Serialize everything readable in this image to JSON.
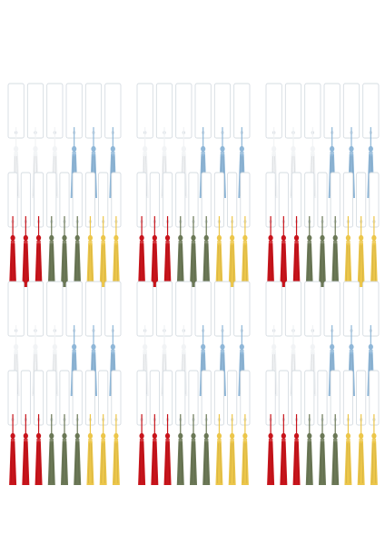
{
  "product_photo": {
    "background": "#ffffff",
    "bookmark": {
      "fill": "#ffffff",
      "border": "#d6dce2"
    },
    "tassel_colors": {
      "white": "#f1f3f5",
      "light_blue": "#8fb7d8",
      "red": "#c8141b",
      "olive_green": "#6b7856",
      "yellow": "#ecc64a"
    },
    "row_patterns": {
      "white_blue": [
        "white",
        "white",
        "white",
        "light_blue",
        "light_blue",
        "light_blue"
      ],
      "red_green_yellow": [
        "red",
        "red",
        "red",
        "olive_green",
        "olive_green",
        "olive_green",
        "yellow",
        "yellow",
        "yellow"
      ]
    },
    "rows": [
      {
        "pattern": "white_blue",
        "groups": 3,
        "per_group": 6
      },
      {
        "pattern": "red_green_yellow",
        "groups": 3,
        "per_group": 9
      },
      {
        "pattern": "white_blue",
        "groups": 3,
        "per_group": 6
      },
      {
        "pattern": "red_green_yellow",
        "groups": 3,
        "per_group": 9
      }
    ]
  }
}
